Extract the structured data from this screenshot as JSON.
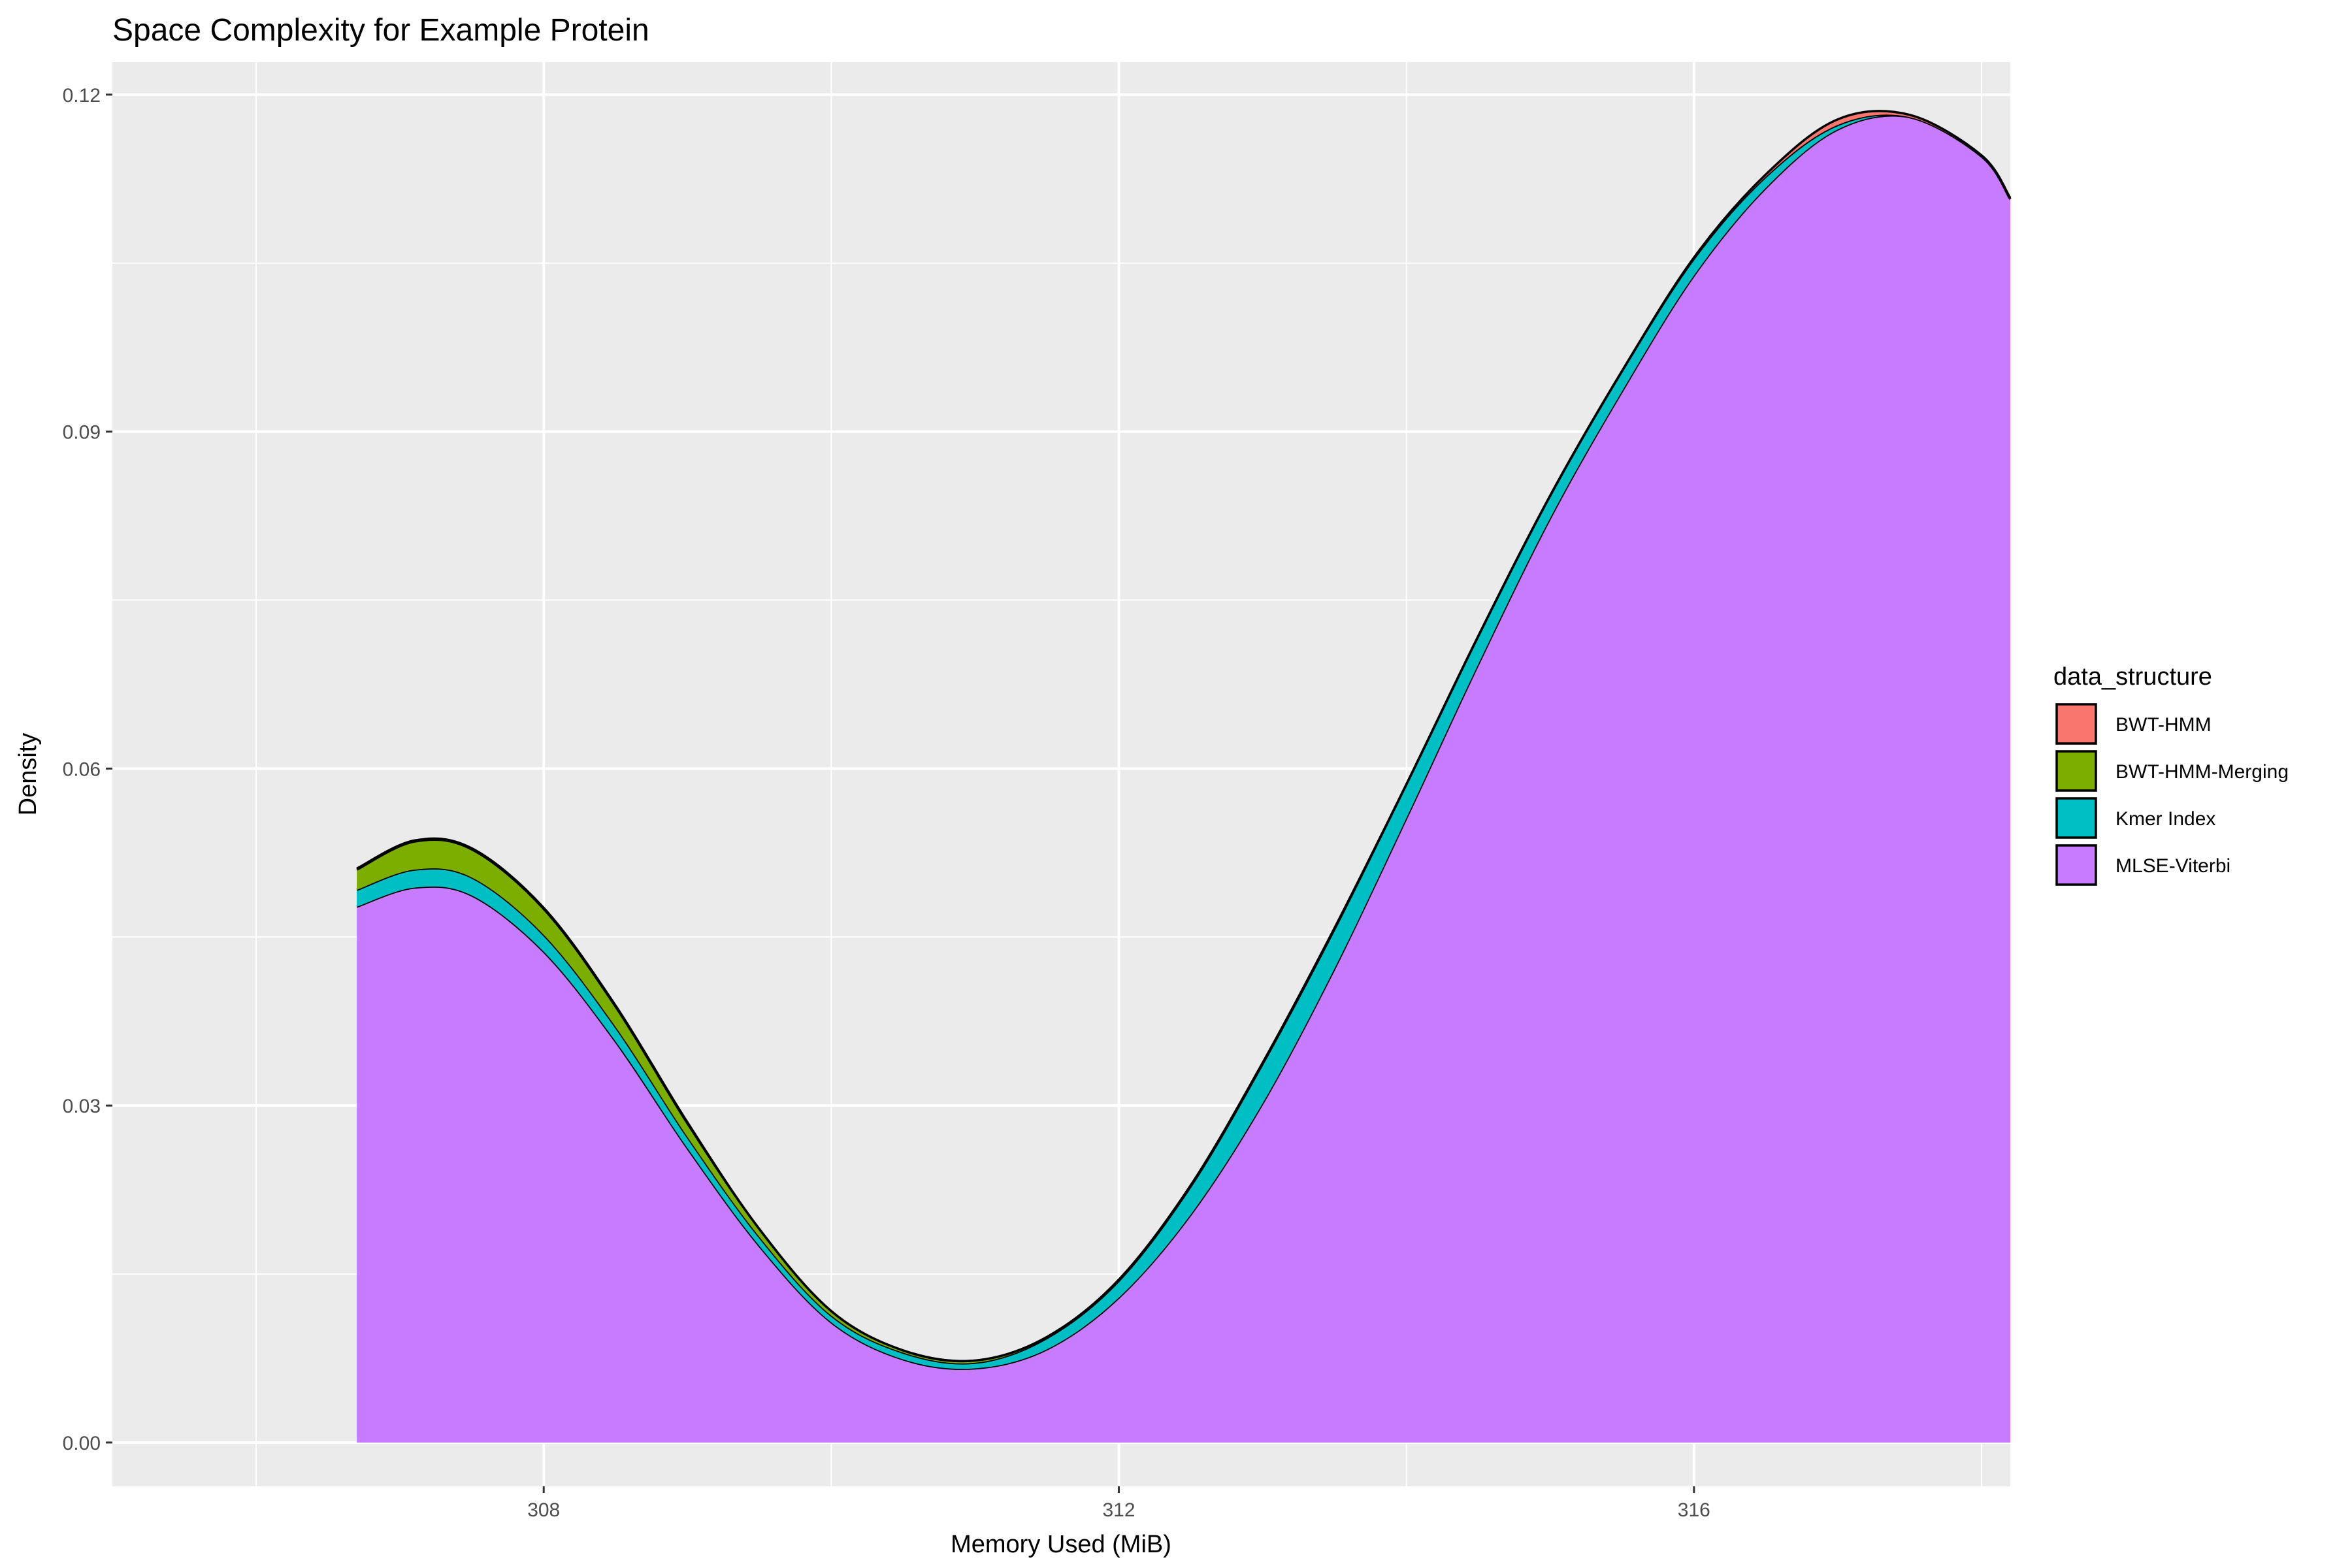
{
  "chart_data": {
    "type": "area",
    "title": "Space Complexity for Example Protein",
    "xlabel": "Memory Used (MiB)",
    "ylabel": "Density",
    "xlim": [
      305.0,
      318.2
    ],
    "ylim": [
      -0.0039,
      0.1229
    ],
    "x_ticks": [
      308,
      312,
      316
    ],
    "x_tick_labels": [
      "308",
      "312",
      "316"
    ],
    "y_ticks": [
      0.0,
      0.03,
      0.06,
      0.09,
      0.12
    ],
    "y_tick_labels": [
      "0.00",
      "0.03",
      "0.06",
      "0.09",
      "0.12"
    ],
    "stacked": true,
    "grid": true,
    "legend": {
      "title": "data_structure",
      "position": "right"
    },
    "x": [
      306.7,
      307.1,
      307.5,
      308.0,
      308.5,
      309.0,
      309.5,
      310.0,
      310.5,
      311.0,
      311.5,
      312.0,
      312.5,
      313.0,
      313.5,
      314.0,
      314.5,
      315.0,
      315.5,
      316.0,
      316.5,
      317.0,
      317.5,
      318.0,
      318.2
    ],
    "series": [
      {
        "name": "MLSE-Viterbi",
        "color": "#C77CFF",
        "values": [
          0.0477,
          0.0494,
          0.0487,
          0.0437,
          0.0357,
          0.0262,
          0.0175,
          0.0107,
          0.0074,
          0.0066,
          0.0083,
          0.0129,
          0.0203,
          0.0302,
          0.0422,
          0.0556,
          0.0693,
          0.0823,
          0.0936,
          0.1039,
          0.1117,
          0.1169,
          0.118,
          0.1145,
          0.1107
        ]
      },
      {
        "name": "Kmer Index",
        "color": "#00BFC4",
        "values": [
          0.0015,
          0.0016,
          0.0016,
          0.0015,
          0.0013,
          0.001,
          0.0008,
          0.0006,
          0.0006,
          0.0005,
          0.001,
          0.0015,
          0.0025,
          0.0035,
          0.0035,
          0.003,
          0.0025,
          0.002,
          0.0018,
          0.0015,
          0.001,
          0.0004,
          0.0,
          0.0,
          0.0
        ]
      },
      {
        "name": "BWT-HMM-Merging",
        "color": "#7CAE00",
        "values": [
          0.0018,
          0.0025,
          0.0025,
          0.0023,
          0.0018,
          0.0012,
          0.0007,
          0.0004,
          0.0002,
          0.0002,
          0.0001,
          0.0001,
          0.0001,
          0.0001,
          0.0001,
          0.0,
          0.0,
          0.0,
          0.0,
          0.0,
          0.0,
          0.0,
          0.0,
          0.0,
          0.0
        ]
      },
      {
        "name": "BWT-HMM",
        "color": "#F8766D",
        "values": [
          0.0001,
          0.0001,
          0.0001,
          0.0001,
          0.0001,
          0.0001,
          0.0,
          0.0,
          0.0,
          0.0,
          0.0,
          0.0,
          0.0,
          0.0,
          0.0,
          0.0,
          0.0,
          0.0,
          0.0,
          0.0001,
          0.0002,
          0.0005,
          0.0002,
          0.0001,
          0.0001
        ]
      }
    ],
    "legend_order": [
      "BWT-HMM",
      "BWT-HMM-Merging",
      "Kmer Index",
      "MLSE-Viterbi"
    ],
    "colors": {
      "panel_bg": "#EBEBEB",
      "grid": "#FFFFFF",
      "outline": "#000000"
    }
  }
}
